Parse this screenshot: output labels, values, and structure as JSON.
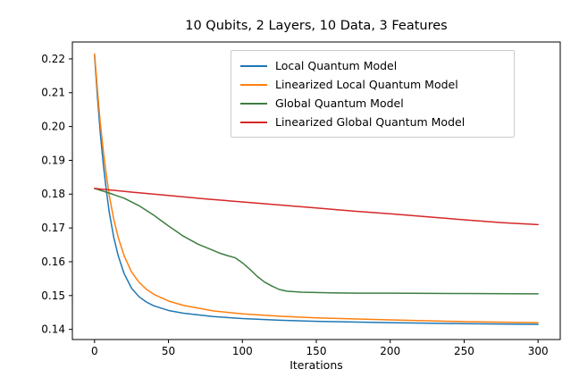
{
  "chart_data": {
    "type": "line",
    "title": "10 Qubits, 2 Layers, 10 Data, 3 Features",
    "xlabel": "Iterations",
    "ylabel": "",
    "xlim": [
      -15,
      315
    ],
    "ylim": [
      0.137,
      0.225
    ],
    "xticks": [
      0,
      50,
      100,
      150,
      200,
      250,
      300
    ],
    "yticks": [
      0.14,
      0.15,
      0.16,
      0.17,
      0.18,
      0.19,
      0.2,
      0.21,
      0.22
    ],
    "grid": false,
    "legend_position": "upper right",
    "series": [
      {
        "name": "Local Quantum Model",
        "color": "#1f77b4",
        "points": [
          [
            0,
            0.221
          ],
          [
            2,
            0.2085
          ],
          [
            4,
            0.1975
          ],
          [
            6,
            0.1885
          ],
          [
            8,
            0.181
          ],
          [
            10,
            0.1745
          ],
          [
            13,
            0.1672
          ],
          [
            16,
            0.1618
          ],
          [
            20,
            0.1565
          ],
          [
            25,
            0.1522
          ],
          [
            30,
            0.1497
          ],
          [
            35,
            0.1481
          ],
          [
            40,
            0.147
          ],
          [
            50,
            0.1456
          ],
          [
            60,
            0.1448
          ],
          [
            80,
            0.1438
          ],
          [
            100,
            0.1432
          ],
          [
            125,
            0.1427
          ],
          [
            150,
            0.1424
          ],
          [
            200,
            0.142
          ],
          [
            250,
            0.1417
          ],
          [
            300,
            0.1415
          ]
        ]
      },
      {
        "name": "Linearized Local Quantum Model",
        "color": "#ff7f0e",
        "points": [
          [
            0,
            0.2215
          ],
          [
            2,
            0.2105
          ],
          [
            4,
            0.2005
          ],
          [
            6,
            0.1925
          ],
          [
            8,
            0.1855
          ],
          [
            10,
            0.1795
          ],
          [
            13,
            0.1725
          ],
          [
            16,
            0.1672
          ],
          [
            20,
            0.1618
          ],
          [
            25,
            0.157
          ],
          [
            30,
            0.154
          ],
          [
            35,
            0.1519
          ],
          [
            40,
            0.1504
          ],
          [
            50,
            0.1484
          ],
          [
            60,
            0.1471
          ],
          [
            80,
            0.1455
          ],
          [
            100,
            0.1446
          ],
          [
            125,
            0.1439
          ],
          [
            150,
            0.1434
          ],
          [
            200,
            0.1428
          ],
          [
            250,
            0.1423
          ],
          [
            300,
            0.142
          ]
        ]
      },
      {
        "name": "Global Quantum Model",
        "color": "#3e7e41",
        "points": [
          [
            0,
            0.1817
          ],
          [
            10,
            0.1803
          ],
          [
            20,
            0.1788
          ],
          [
            30,
            0.1766
          ],
          [
            40,
            0.1738
          ],
          [
            50,
            0.1706
          ],
          [
            60,
            0.1676
          ],
          [
            70,
            0.1652
          ],
          [
            80,
            0.1634
          ],
          [
            85,
            0.1625
          ],
          [
            90,
            0.1618
          ],
          [
            95,
            0.1612
          ],
          [
            100,
            0.1597
          ],
          [
            105,
            0.1578
          ],
          [
            110,
            0.1557
          ],
          [
            115,
            0.154
          ],
          [
            120,
            0.1528
          ],
          [
            125,
            0.1518
          ],
          [
            130,
            0.1513
          ],
          [
            140,
            0.151
          ],
          [
            160,
            0.1508
          ],
          [
            180,
            0.1507
          ],
          [
            200,
            0.1507
          ],
          [
            250,
            0.1506
          ],
          [
            300,
            0.1505
          ]
        ]
      },
      {
        "name": "Linearized Global Quantum Model",
        "color": "#d62728",
        "points": [
          [
            0,
            0.1817
          ],
          [
            25,
            0.1806
          ],
          [
            50,
            0.1796
          ],
          [
            75,
            0.1786
          ],
          [
            100,
            0.1777
          ],
          [
            125,
            0.1768
          ],
          [
            150,
            0.1759
          ],
          [
            175,
            0.175
          ],
          [
            200,
            0.1742
          ],
          [
            225,
            0.1733
          ],
          [
            250,
            0.1724
          ],
          [
            275,
            0.1716
          ],
          [
            300,
            0.171
          ]
        ]
      }
    ]
  }
}
